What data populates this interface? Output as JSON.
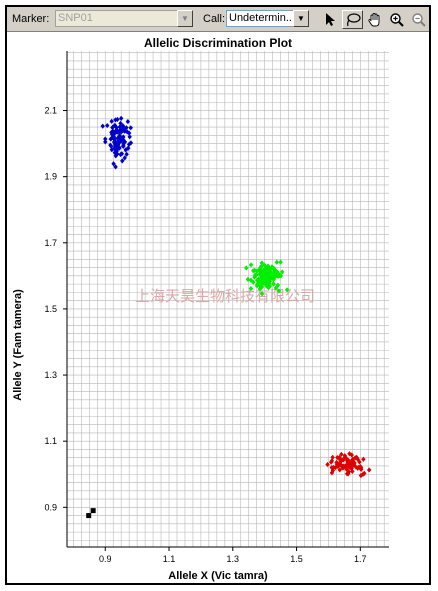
{
  "toolbar": {
    "marker_label": "Marker:",
    "marker_value": "SNP01",
    "call_label": "Call:",
    "call_value": "Undetermin..."
  },
  "watermark": "上海天昊生物科技有限公司",
  "chart_data": {
    "type": "scatter",
    "title": "Allelic Discrimination Plot",
    "xlabel": "Allele X (Vic tamra)",
    "ylabel": "Allele Y (Fam tamera)",
    "xlim": [
      0.78,
      1.79
    ],
    "ylim": [
      0.78,
      2.28
    ],
    "x_ticks": [
      "0.9",
      "1.1",
      "1.3",
      "1.5",
      "1.7"
    ],
    "y_ticks": [
      "0.9",
      "1.1",
      "1.3",
      "1.5",
      "1.7",
      "1.9",
      "2.1"
    ],
    "grid": true,
    "series": [
      {
        "color": "#0000cc",
        "marker": "diamond",
        "center": [
          0.945,
          2.01
        ],
        "spread": [
          0.045,
          0.065
        ],
        "count": 110
      },
      {
        "color": "#00ee00",
        "marker": "diamond",
        "center": [
          1.405,
          1.6
        ],
        "spread": [
          0.055,
          0.045
        ],
        "count": 130
      },
      {
        "color": "#dd0000",
        "marker": "diamond",
        "center": [
          1.66,
          1.03
        ],
        "spread": [
          0.06,
          0.03
        ],
        "count": 85
      },
      {
        "color": "#000000",
        "marker": "square",
        "points": [
          [
            0.848,
            0.875
          ],
          [
            0.862,
            0.89
          ]
        ]
      }
    ]
  }
}
